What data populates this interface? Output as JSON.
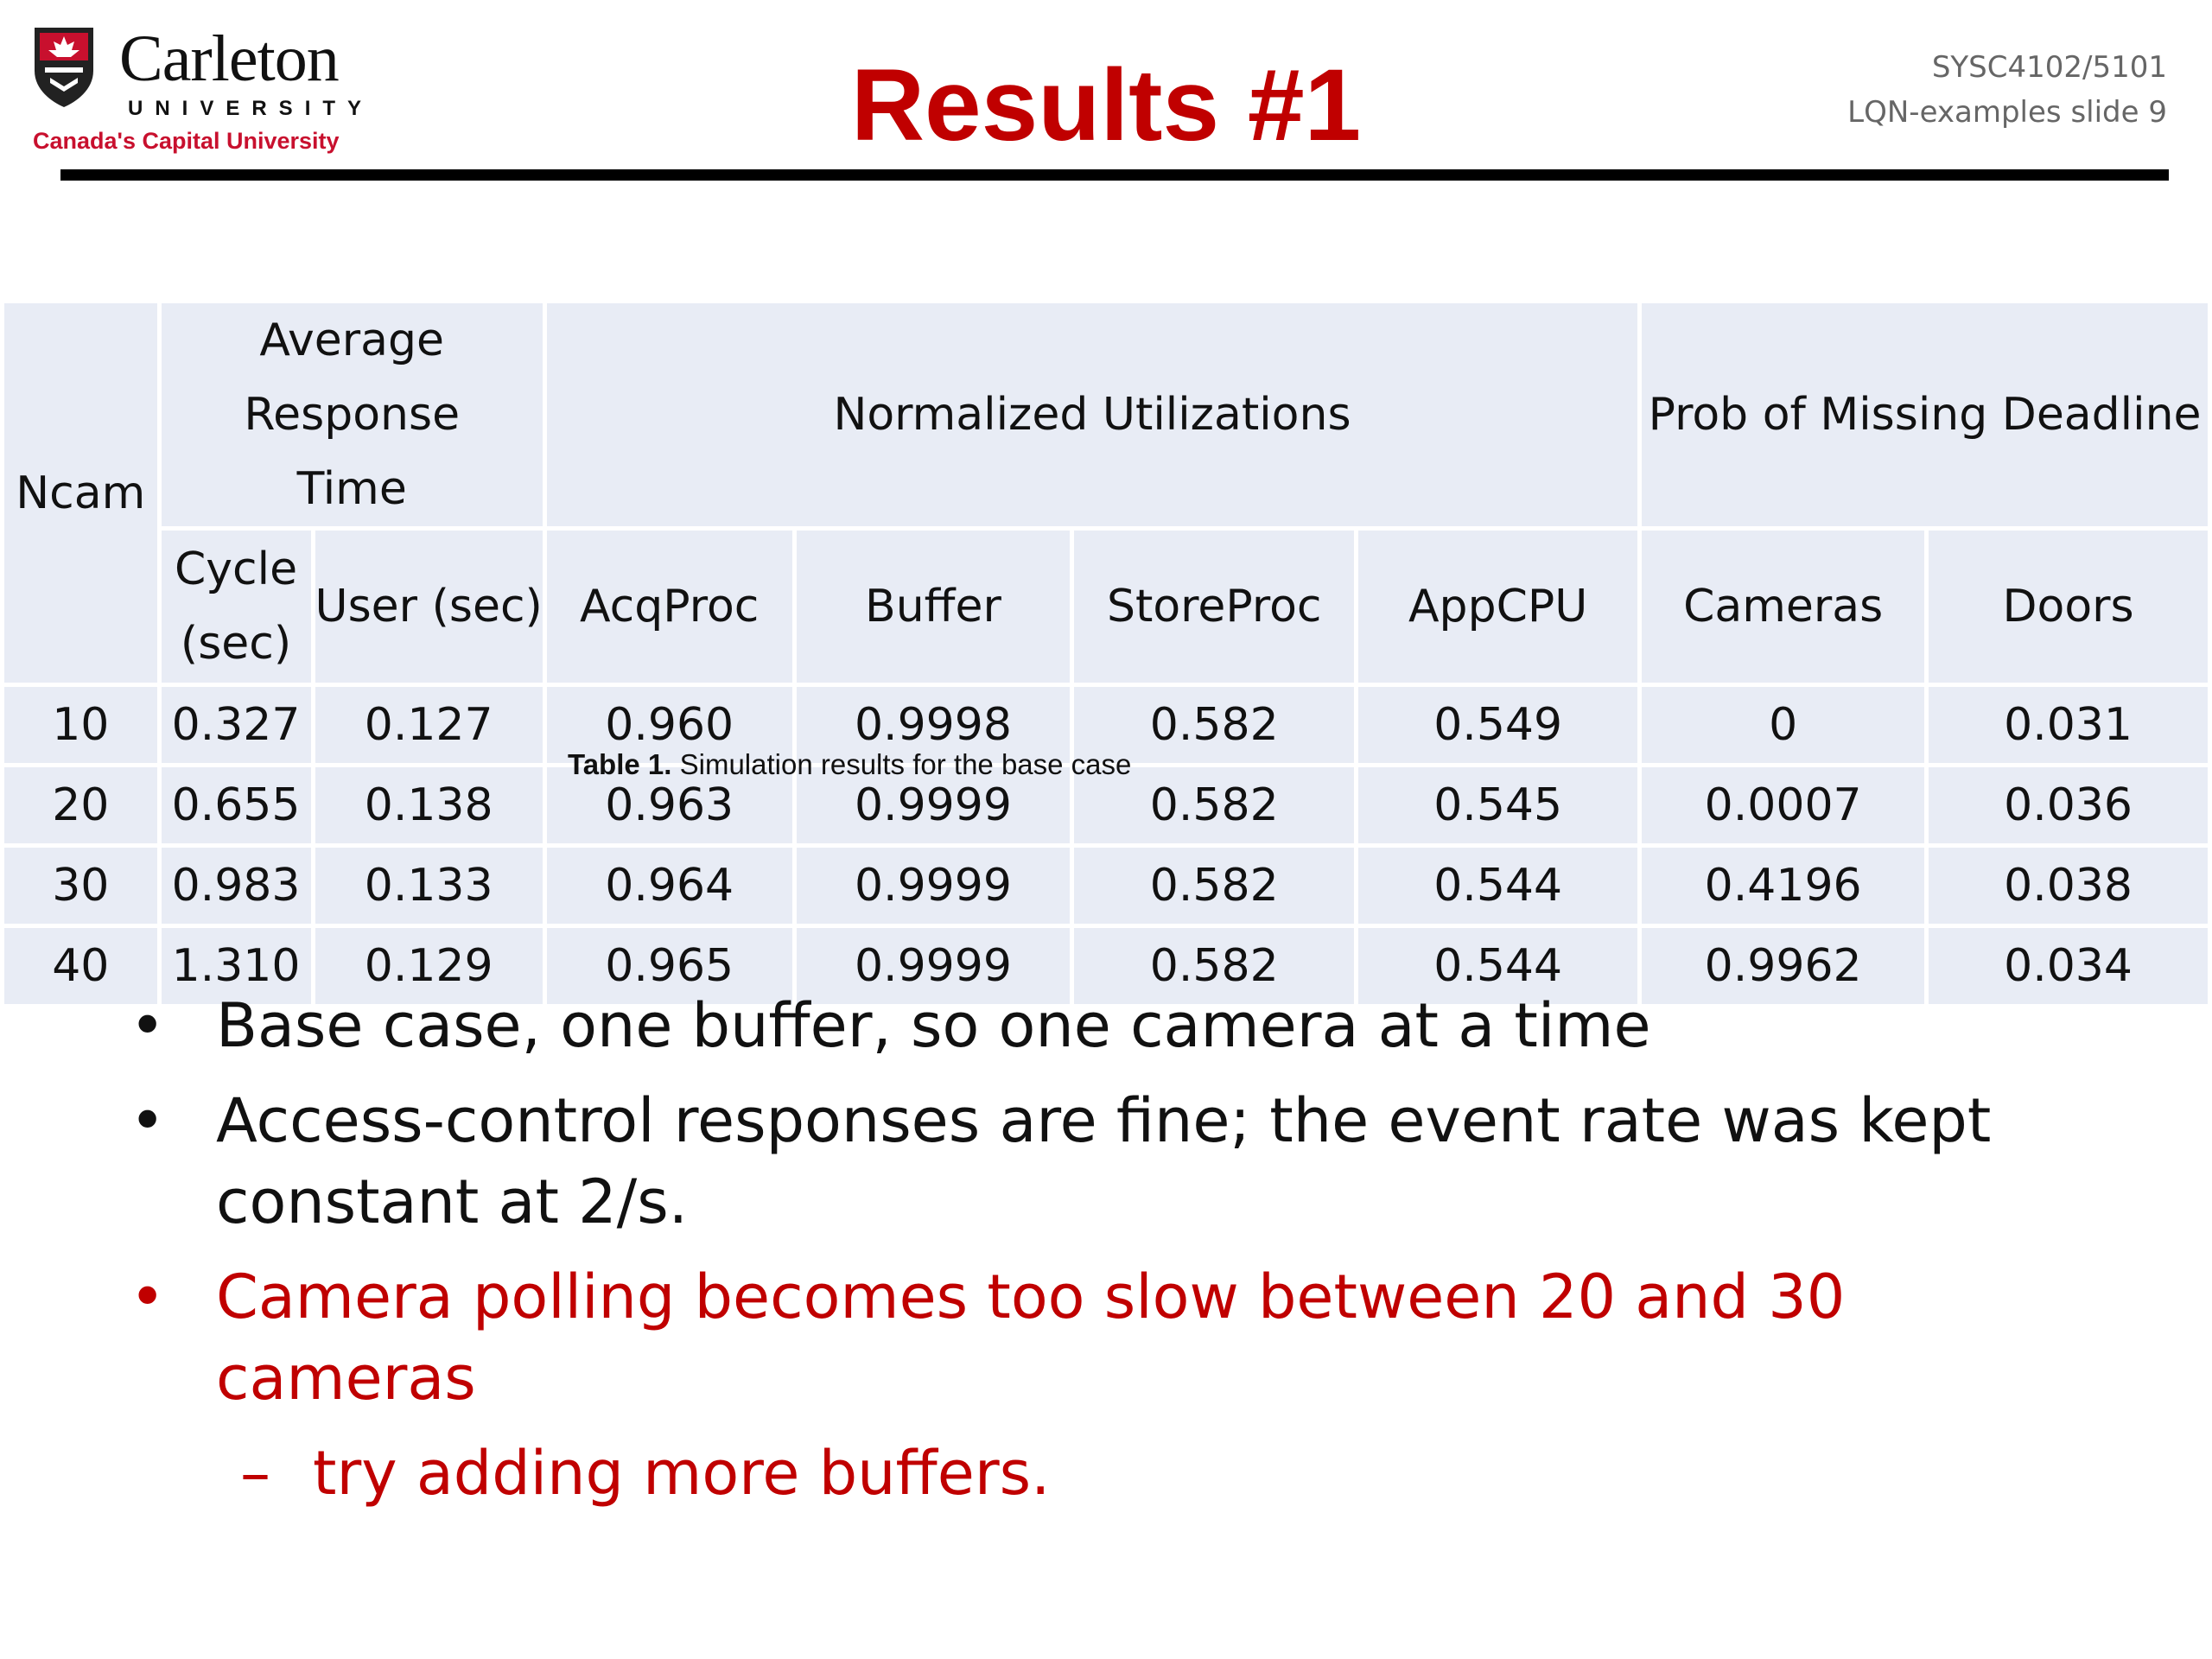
{
  "header": {
    "logo_name": "Carleton",
    "logo_university": "UNIVERSITY",
    "logo_tagline": "Canada's Capital University",
    "title": "Results #1",
    "course_code": "SYSC4102/5101",
    "slide_ref": "LQN-examples slide 9"
  },
  "table": {
    "col_ncam": "Ncam",
    "group_response": "Average Response Time",
    "group_util": "Normalized Utilizations",
    "group_deadline": "Prob of Missing Deadline",
    "col_cycle": "Cycle (sec)",
    "col_user": "User (sec)",
    "col_acqproc": "AcqProc",
    "col_buffer": "Buffer",
    "col_storeproc": "StoreProc",
    "col_appcpu": "AppCPU",
    "col_cameras": "Cameras",
    "col_doors": "Doors",
    "rows": [
      [
        "10",
        "0.327",
        "0.127",
        "0.960",
        "0.9998",
        "0.582",
        "0.549",
        "0",
        "0.031"
      ],
      [
        "20",
        "0.655",
        "0.138",
        "0.963",
        "0.9999",
        "0.582",
        "0.545",
        "0.0007",
        "0.036"
      ],
      [
        "30",
        "0.983",
        "0.133",
        "0.964",
        "0.9999",
        "0.582",
        "0.544",
        "0.4196",
        "0.038"
      ],
      [
        "40",
        "1.310",
        "0.129",
        "0.965",
        "0.9999",
        "0.582",
        "0.544",
        "0.9962",
        "0.034"
      ]
    ]
  },
  "caption": {
    "label": "Table 1.",
    "text": "Simulation results for the base case"
  },
  "bullets": {
    "b1": "Base case, one buffer, so one camera at a time",
    "b2": "Access-control responses are fine; the event rate was kept constant at 2/s.",
    "b3": "Camera polling becomes too slow between 20 and 30 cameras",
    "sub1": "try adding more buffers.",
    "bullet_char": "•",
    "dash_char": "–"
  },
  "colors": {
    "title": "#c00000",
    "table_bg": "#e8ecf5",
    "logo_red": "#c8102e"
  }
}
